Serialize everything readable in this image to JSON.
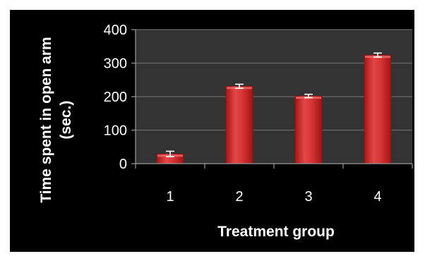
{
  "chart_data": {
    "type": "bar",
    "title": "",
    "xlabel": "Treatment group",
    "ylabel_line1": "Time spent in open arm",
    "ylabel_line2": "(sec.)",
    "categories": [
      "1",
      "2",
      "3",
      "4"
    ],
    "values": [
      29,
      231,
      202,
      324
    ],
    "errors": [
      8,
      6,
      5,
      6
    ],
    "ylim": [
      0,
      400
    ],
    "yticks": [
      0,
      100,
      200,
      300,
      400
    ],
    "grid": true,
    "legend": "none",
    "colors": {
      "background": "#000000",
      "plot_area": "#333333",
      "bar_fill": "#d62f2f",
      "bar_highlight": "#ee6a6a",
      "grid": "#6a6a6a",
      "axis": "#9a9a9a",
      "error_bar": "#ffffff"
    }
  }
}
